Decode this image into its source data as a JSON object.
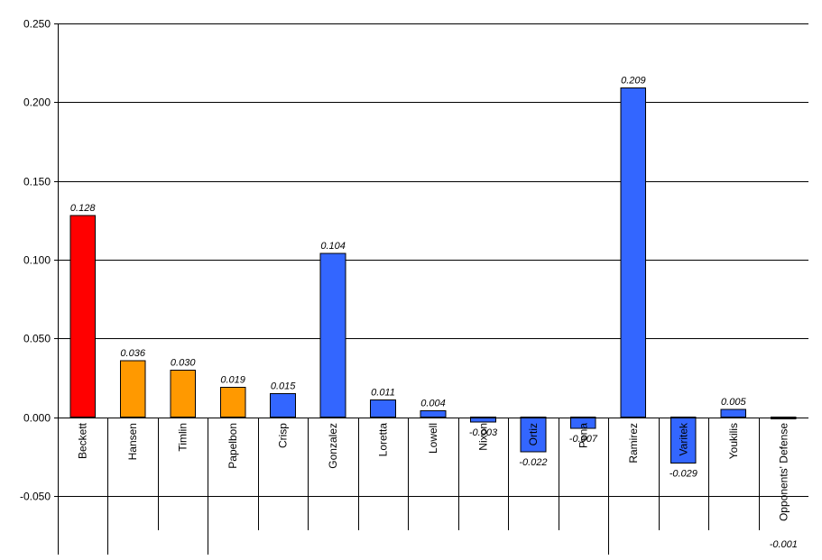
{
  "chart_data": {
    "type": "bar",
    "title": "",
    "xlabel": "",
    "ylabel": "",
    "ylim": [
      -0.05,
      0.25
    ],
    "ytick_step": 0.05,
    "ytick_labels": [
      "-0.050",
      "0.000",
      "0.050",
      "0.100",
      "0.150",
      "0.200",
      "0.250"
    ],
    "grid": true,
    "categories": [
      "Beckett",
      "Hansen",
      "Timlin",
      "Papelbon",
      "Crisp",
      "Gonzalez",
      "Loretta",
      "Lowell",
      "Nixon",
      "Ortiz",
      "Pena",
      "Ramirez",
      "Varitek",
      "Youkilis",
      "Opponents' Defense"
    ],
    "values": [
      0.128,
      0.036,
      0.03,
      0.019,
      0.015,
      0.104,
      0.011,
      0.004,
      -0.003,
      -0.022,
      -0.007,
      0.209,
      -0.029,
      0.005,
      -0.001
    ],
    "value_labels": [
      "0.128",
      "0.036",
      "0.030",
      "0.019",
      "0.015",
      "0.104",
      "0.011",
      "0.004",
      "-0.003",
      "-0.022",
      "-0.007",
      "0.209",
      "-0.029",
      "0.005",
      "-0.001"
    ],
    "bar_colors": [
      "#ff0000",
      "#ff9900",
      "#ff9900",
      "#ff9900",
      "#3366ff",
      "#3366ff",
      "#3366ff",
      "#3366ff",
      "#3366ff",
      "#3366ff",
      "#3366ff",
      "#3366ff",
      "#3366ff",
      "#3366ff",
      "#3366ff"
    ],
    "category_groups": [
      1,
      3,
      11
    ]
  }
}
